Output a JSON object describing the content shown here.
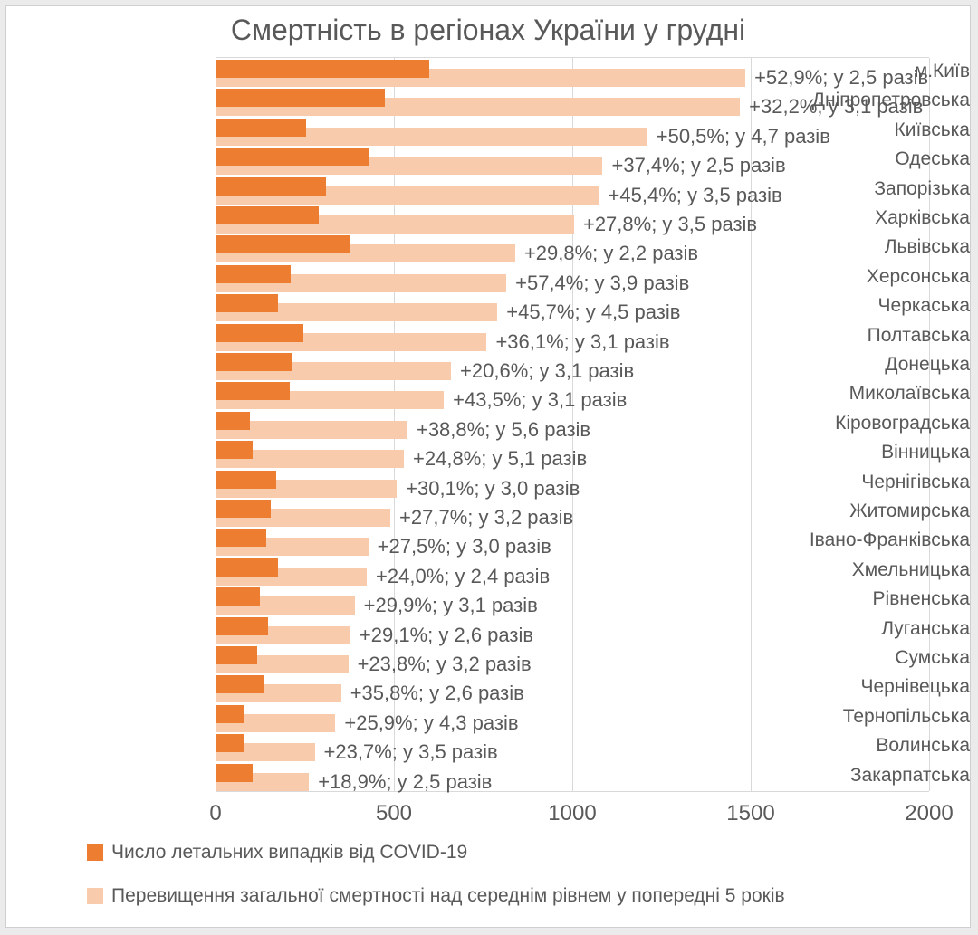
{
  "title": "Смертність в регіонах України у грудні",
  "colors": {
    "covid_bar": "#ED7D31",
    "excess_bar": "#F8CBAD",
    "text": "#595959",
    "grid": "#D9D9D9"
  },
  "legend": {
    "covid_label": "Число летальних випадків від COVID-19",
    "excess_label": "Перевищення загальної смертності над середнім рівнем у попередні 5 років"
  },
  "chart_data": {
    "type": "bar",
    "orientation": "horizontal",
    "title": "Смертність в регіонах України у грудні",
    "xlabel": "",
    "ylabel": "",
    "xlim": [
      0,
      2000
    ],
    "x_ticks": [
      0,
      500,
      1000,
      1500,
      2000
    ],
    "grid": "vertical",
    "legend_position": "bottom-left",
    "categories": [
      "м.Київ",
      "Дніпропетровська",
      "Київська",
      "Одеська",
      "Запорізька",
      "Харківська",
      "Львівська",
      "Херсонська",
      "Черкаська",
      "Полтавська",
      "Донецька",
      "Миколаївська",
      "Кіровоградська",
      "Вінницька",
      "Чернігівська",
      "Житомирська",
      "Івано-Франківська",
      "Хмельницька",
      "Рівненська",
      "Луганська",
      "Сумська",
      "Чернівецька",
      "Тернопільська",
      "Волинська",
      "Закарпатська"
    ],
    "series": [
      {
        "name": "Число летальних випадків від COVID-19",
        "color": "#ED7D31",
        "values": [
          600,
          475,
          255,
          430,
          310,
          290,
          378,
          210,
          175,
          245,
          212,
          208,
          96,
          104,
          170,
          154,
          142,
          175,
          125,
          146,
          116,
          136,
          78,
          80,
          105
        ]
      },
      {
        "name": "Перевищення загальної смертності над середнім рівнем у попередні 5 років",
        "color": "#F8CBAD",
        "values": [
          1485,
          1470,
          1210,
          1085,
          1075,
          1005,
          840,
          815,
          790,
          760,
          660,
          640,
          538,
          528,
          508,
          490,
          428,
          424,
          390,
          378,
          372,
          352,
          336,
          278,
          262
        ]
      }
    ],
    "annotations": [
      "+52,9%; у 2,5 разів",
      "+32,2%; у 3,1 разів",
      "+50,5%; у 4,7 разів",
      "+37,4%; у 2,5 разів",
      "+45,4%; у 3,5 разів",
      "+27,8%; у 3,5 разів",
      "+29,8%; у 2,2 разів",
      "+57,4%; у 3,9 разів",
      "+45,7%; у 4,5 разів",
      "+36,1%; у 3,1 разів",
      "+20,6%; у 3,1 разів",
      "+43,5%; у 3,1 разів",
      "+38,8%; у 5,6 разів",
      "+24,8%; у 5,1 разів",
      "+30,1%; у 3,0 разів",
      "+27,7%; у 3,2 разів",
      "+27,5%; у 3,0 разів",
      "+24,0%; у 2,4 разів",
      "+29,9%; у 3,1 разів",
      "+29,1%; у 2,6 разів",
      "+23,8%; у 3,2 разів",
      "+35,8%; у 2,6 разів",
      "+25,9%; у 4,3 разів",
      "+23,7%; у 3,5 разів",
      "+18,9%; у 2,5 разів"
    ]
  }
}
